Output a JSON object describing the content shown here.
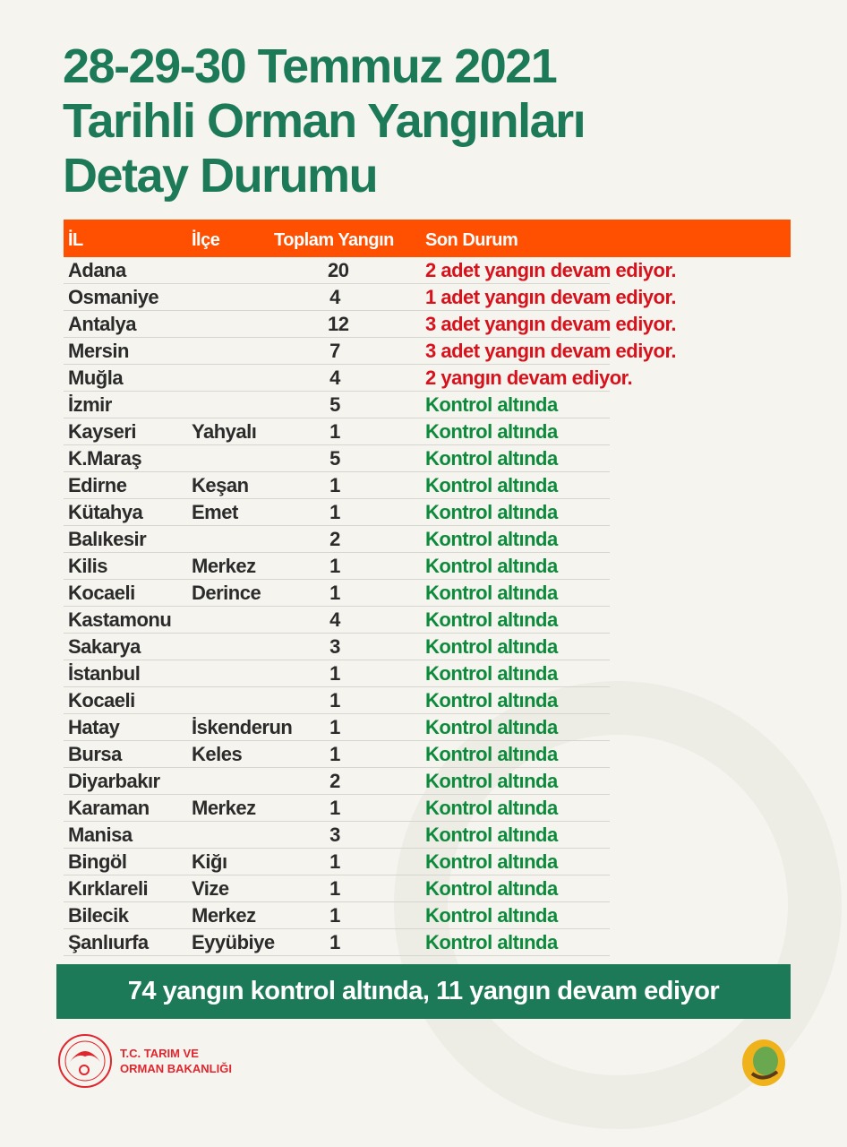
{
  "title_lines": [
    "28-29-30 Temmuz 2021",
    "Tarihli Orman Yangınları",
    "Detay Durumu"
  ],
  "headers": {
    "il": "İL",
    "ilce": "İlçe",
    "toplam": "Toplam Yangın",
    "durum": "Son Durum"
  },
  "colors": {
    "title": "#1d7a58",
    "header": "#ff4f00",
    "active": "#d8121c",
    "controlled": "#0e8a3c"
  },
  "rows": [
    {
      "il": "Adana",
      "ilce": "",
      "toplam": "20",
      "durum": "2 adet yangın devam ediyor.",
      "status": "active"
    },
    {
      "il": "Osmaniye",
      "ilce": "",
      "toplam": "4",
      "durum": "1 adet yangın devam ediyor.",
      "status": "active"
    },
    {
      "il": "Antalya",
      "ilce": "",
      "toplam": "12",
      "durum": "3 adet yangın devam ediyor.",
      "status": "active"
    },
    {
      "il": "Mersin",
      "ilce": "",
      "toplam": "7",
      "durum": "3 adet yangın devam ediyor.",
      "status": "active"
    },
    {
      "il": "Muğla",
      "ilce": "",
      "toplam": "4",
      "durum": "2 yangın devam ediyor.",
      "status": "active"
    },
    {
      "il": "İzmir",
      "ilce": "",
      "toplam": "5",
      "durum": "Kontrol altında",
      "status": "controlled"
    },
    {
      "il": "Kayseri",
      "ilce": "Yahyalı",
      "toplam": "1",
      "durum": "Kontrol altında",
      "status": "controlled"
    },
    {
      "il": "K.Maraş",
      "ilce": "",
      "toplam": "5",
      "durum": "Kontrol altında",
      "status": "controlled"
    },
    {
      "il": "Edirne",
      "ilce": "Keşan",
      "toplam": "1",
      "durum": "Kontrol altında",
      "status": "controlled"
    },
    {
      "il": "Kütahya",
      "ilce": "Emet",
      "toplam": "1",
      "durum": "Kontrol altında",
      "status": "controlled"
    },
    {
      "il": "Balıkesir",
      "ilce": "",
      "toplam": "2",
      "durum": "Kontrol altında",
      "status": "controlled"
    },
    {
      "il": "Kilis",
      "ilce": "Merkez",
      "toplam": "1",
      "durum": "Kontrol altında",
      "status": "controlled"
    },
    {
      "il": "Kocaeli",
      "ilce": "Derince",
      "toplam": "1",
      "durum": "Kontrol altında",
      "status": "controlled"
    },
    {
      "il": "Kastamonu",
      "ilce": "",
      "toplam": "4",
      "durum": "Kontrol altında",
      "status": "controlled"
    },
    {
      "il": "Sakarya",
      "ilce": "",
      "toplam": "3",
      "durum": "Kontrol altında",
      "status": "controlled"
    },
    {
      "il": "İstanbul",
      "ilce": "",
      "toplam": "1",
      "durum": "Kontrol altında",
      "status": "controlled"
    },
    {
      "il": "Kocaeli",
      "ilce": "",
      "toplam": "1",
      "durum": "Kontrol altında",
      "status": "controlled"
    },
    {
      "il": "Hatay",
      "ilce": "İskenderun",
      "toplam": "1",
      "durum": "Kontrol altında",
      "status": "controlled"
    },
    {
      "il": "Bursa",
      "ilce": "Keles",
      "toplam": "1",
      "durum": "Kontrol altında",
      "status": "controlled"
    },
    {
      "il": "Diyarbakır",
      "ilce": "",
      "toplam": "2",
      "durum": "Kontrol altında",
      "status": "controlled"
    },
    {
      "il": "Karaman",
      "ilce": "Merkez",
      "toplam": "1",
      "durum": "Kontrol altında",
      "status": "controlled"
    },
    {
      "il": "Manisa",
      "ilce": "",
      "toplam": "3",
      "durum": "Kontrol altında",
      "status": "controlled"
    },
    {
      "il": "Bingöl",
      "ilce": "Kiğı",
      "toplam": "1",
      "durum": "Kontrol altında",
      "status": "controlled"
    },
    {
      "il": "Kırklareli",
      "ilce": "Vize",
      "toplam": "1",
      "durum": "Kontrol altında",
      "status": "controlled"
    },
    {
      "il": "Bilecik",
      "ilce": "Merkez",
      "toplam": "1",
      "durum": "Kontrol altında",
      "status": "controlled"
    },
    {
      "il": "Şanlıurfa",
      "ilce": "Eyyübiye",
      "toplam": "1",
      "durum": "Kontrol altında",
      "status": "controlled"
    }
  ],
  "summary": "74 yangın kontrol altında, 11 yangın devam ediyor",
  "footer": {
    "ministry_line1": "T.C. TARIM VE",
    "ministry_line2": "ORMAN BAKANLIĞI",
    "ogm_logo": "orman-genel-mudurlugu-logo"
  }
}
